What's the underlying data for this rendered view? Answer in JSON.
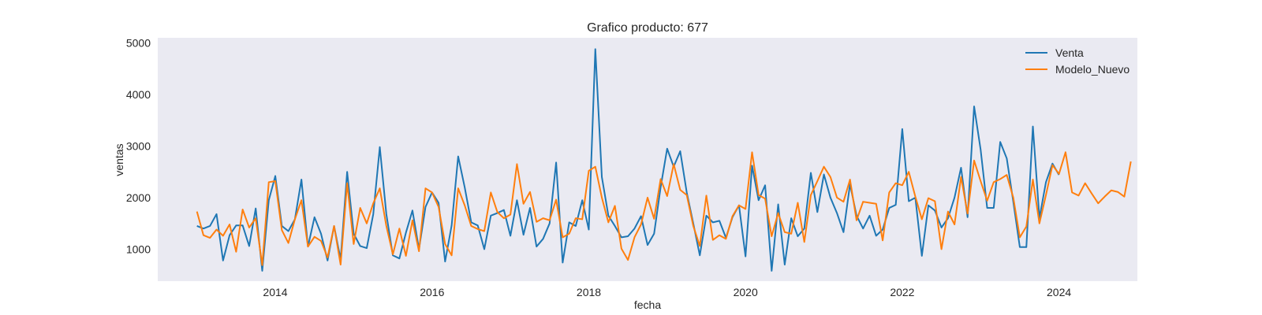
{
  "chart_data": {
    "type": "line",
    "title": "Grafico producto: 677",
    "xlabel": "fecha",
    "ylabel": "ventas",
    "x_start": "2013-01",
    "x_step": "month",
    "xlim": [
      "2012-07",
      "2025-01"
    ],
    "xticks": [
      "2014",
      "2016",
      "2018",
      "2020",
      "2022",
      "2024"
    ],
    "ylim": [
      380,
      5100
    ],
    "yticks": [
      1000,
      2000,
      3000,
      4000,
      5000
    ],
    "grid": false,
    "background": "#eaeaf2",
    "legend_position": "top-right",
    "series": [
      {
        "name": "Venta",
        "color": "#1f77b4",
        "values": [
          1450,
          1400,
          1450,
          1680,
          780,
          1270,
          1460,
          1460,
          1060,
          1790,
          580,
          1950,
          2420,
          1450,
          1350,
          1580,
          2350,
          1050,
          1620,
          1300,
          780,
          1450,
          800,
          2500,
          1300,
          1060,
          1020,
          1680,
          2980,
          1680,
          880,
          820,
          1320,
          1750,
          1000,
          1820,
          2100,
          1900,
          760,
          1460,
          2800,
          2200,
          1520,
          1460,
          1000,
          1650,
          1700,
          1760,
          1260,
          1950,
          1280,
          1800,
          1050,
          1200,
          1500,
          2680,
          740,
          1520,
          1450,
          1950,
          1380,
          4880,
          2400,
          1650,
          1450,
          1230,
          1250,
          1400,
          1640,
          1080,
          1300,
          2200,
          2950,
          2600,
          2900,
          2100,
          1500,
          880,
          1650,
          1520,
          1550,
          1220,
          1620,
          1850,
          860,
          2620,
          1950,
          2240,
          580,
          1870,
          700,
          1600,
          1250,
          1400,
          2480,
          1720,
          2450,
          2000,
          1700,
          1330,
          2260,
          1650,
          1400,
          1650,
          1260,
          1380,
          1800,
          1860,
          3330,
          1930,
          2000,
          870,
          1850,
          1750,
          1420,
          1600,
          2000,
          2580,
          1620,
          3770,
          2930,
          1800,
          1800,
          3080,
          2760,
          1920,
          1040,
          1040,
          3380,
          1600,
          2300,
          2660,
          2440
        ]
      },
      {
        "name": "Modelo_Nuevo",
        "color": "#ff7f0e",
        "values": [
          1730,
          1270,
          1220,
          1380,
          1260,
          1480,
          950,
          1770,
          1420,
          1600,
          690,
          2300,
          2320,
          1370,
          1120,
          1580,
          1950,
          1050,
          1240,
          1160,
          840,
          1450,
          700,
          2280,
          1100,
          1800,
          1500,
          1890,
          2180,
          1450,
          900,
          1400,
          870,
          1560,
          960,
          2180,
          2100,
          1820,
          1100,
          880,
          2180,
          1850,
          1450,
          1390,
          1350,
          2100,
          1720,
          1600,
          1670,
          2650,
          1880,
          2110,
          1530,
          1600,
          1560,
          1960,
          1230,
          1300,
          1600,
          1580,
          2520,
          2600,
          2000,
          1520,
          1840,
          1010,
          790,
          1230,
          1480,
          2000,
          1590,
          2360,
          2030,
          2650,
          2150,
          2050,
          1450,
          1060,
          2040,
          1180,
          1270,
          1200,
          1640,
          1850,
          1780,
          2880,
          2050,
          1980,
          1250,
          1700,
          1330,
          1300,
          1900,
          1140,
          2050,
          2320,
          2600,
          2400,
          2000,
          1920,
          2350,
          1560,
          1920,
          1900,
          1880,
          1170,
          2100,
          2280,
          2240,
          2500,
          2020,
          1580,
          1990,
          1930,
          1000,
          1730,
          1480,
          2400,
          1690,
          2720,
          2320,
          1940,
          2300,
          2360,
          2440,
          2000,
          1230,
          1440,
          2350,
          1500,
          2050,
          2630,
          2460,
          2880,
          2100,
          2040,
          2280,
          2080,
          1890,
          2020,
          2140,
          2110,
          2020,
          2700
        ]
      }
    ]
  }
}
